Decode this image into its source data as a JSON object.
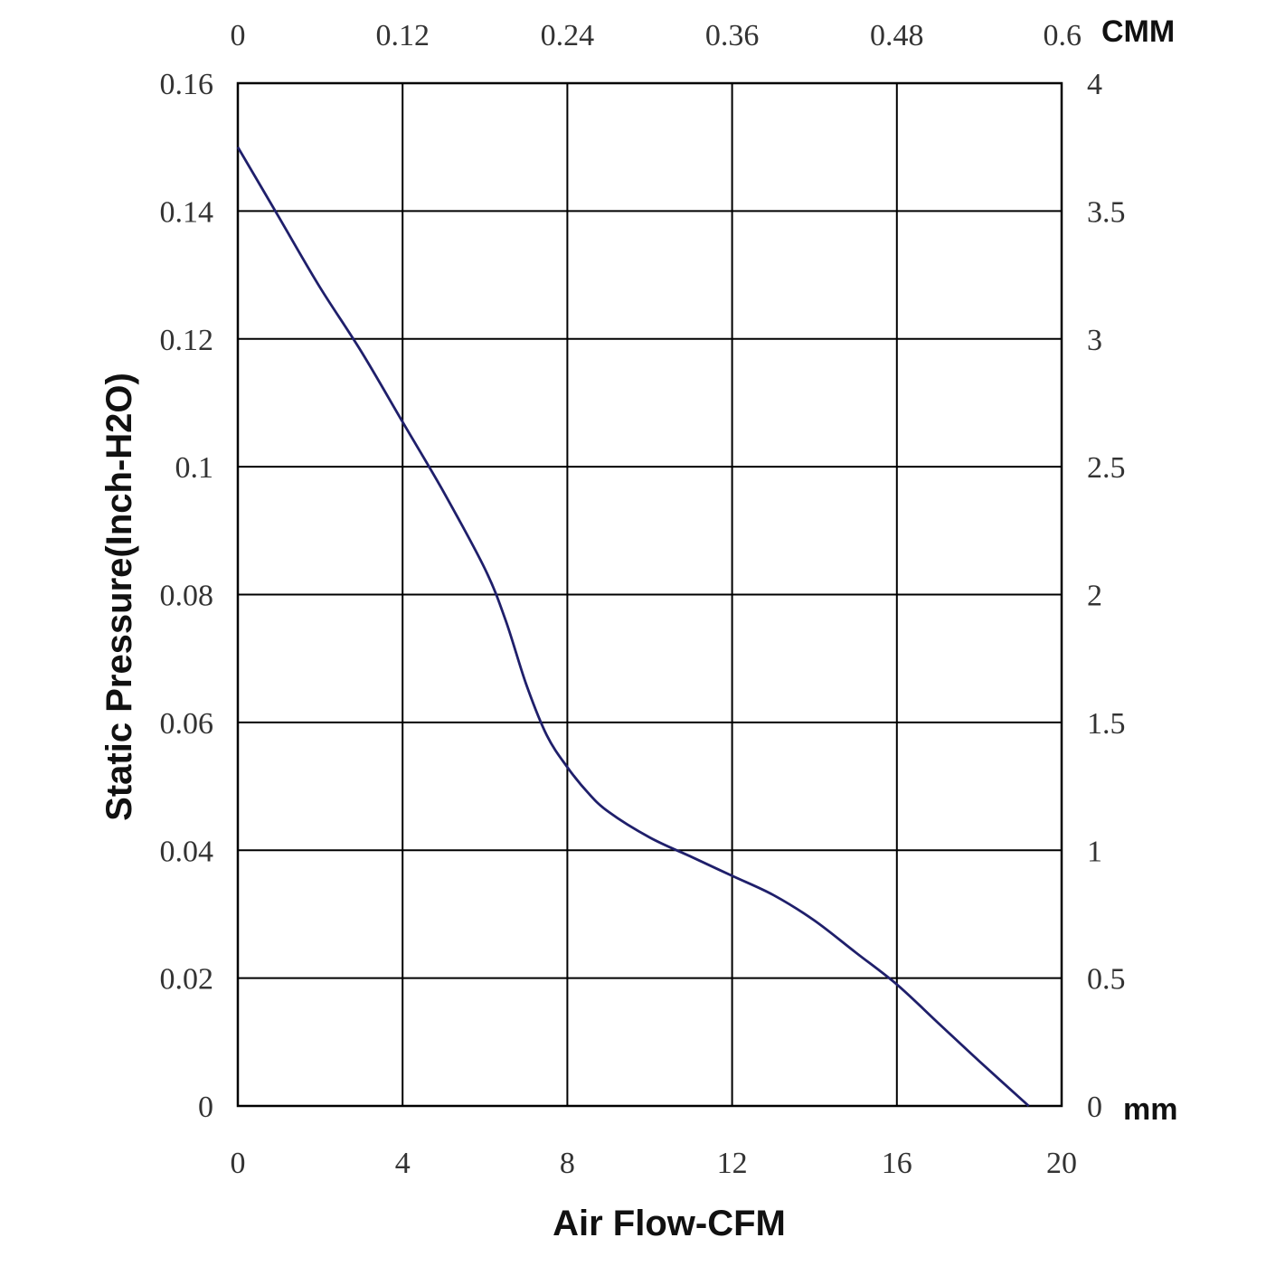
{
  "chart_data": {
    "type": "line",
    "xlabel": "Air Flow-CFM",
    "ylabel": "Static Pressure(Inch-H2O)",
    "xlim": [
      0,
      20
    ],
    "ylim": [
      0,
      0.16
    ],
    "x_ticks": [
      "0",
      "4",
      "8",
      "12",
      "16",
      "20"
    ],
    "y_ticks": [
      "0",
      "0.02",
      "0.04",
      "0.06",
      "0.08",
      "0.1",
      "0.12",
      "0.14",
      "0.16"
    ],
    "top_axis": {
      "unit": "CMM",
      "ticks": [
        "0",
        "0.12",
        "0.24",
        "0.36",
        "0.48",
        "0.6"
      ]
    },
    "right_axis": {
      "unit": "mm",
      "ticks": [
        "0",
        "0.5",
        "1",
        "1.5",
        "2",
        "2.5",
        "3",
        "3.5",
        "4"
      ]
    },
    "grid": true,
    "colors": {
      "line": "#1f1f6b",
      "grid": "#000000"
    },
    "series": [
      {
        "x": [
          0,
          1,
          2,
          3,
          4,
          5,
          6,
          6.5,
          7,
          7.5,
          8,
          8.5,
          9,
          10,
          11,
          12,
          13,
          14,
          15,
          16,
          17,
          18,
          19.2
        ],
        "y": [
          0.15,
          0.139,
          0.128,
          0.118,
          0.107,
          0.096,
          0.084,
          0.076,
          0.066,
          0.058,
          0.053,
          0.049,
          0.046,
          0.042,
          0.039,
          0.036,
          0.033,
          0.029,
          0.024,
          0.019,
          0.013,
          0.007,
          0.0
        ]
      }
    ]
  }
}
